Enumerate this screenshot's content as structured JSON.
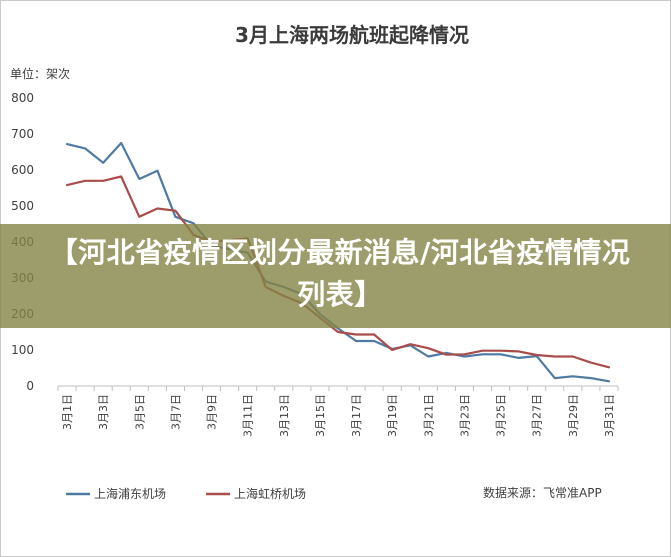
{
  "chart_data": {
    "type": "line",
    "title": "3月上海两场航班起降情况",
    "unit_label": "单位：架次",
    "ylim": [
      0,
      800
    ],
    "yticks": [
      0,
      100,
      200,
      300,
      400,
      500,
      600,
      700,
      800
    ],
    "categories": [
      "3月1日",
      "3月2日",
      "3月3日",
      "3月4日",
      "3月5日",
      "3月6日",
      "3月7日",
      "3月8日",
      "3月9日",
      "3月10日",
      "3月11日",
      "3月12日",
      "3月13日",
      "3月14日",
      "3月15日",
      "3月16日",
      "3月17日",
      "3月18日",
      "3月19日",
      "3月20日",
      "3月21日",
      "3月22日",
      "3月23日",
      "3月24日",
      "3月25日",
      "3月26日",
      "3月27日",
      "3月28日",
      "3月29日",
      "3月30日",
      "3月31日"
    ],
    "tick_labels": [
      "3月1日",
      "3月3日",
      "3月5日",
      "3月7日",
      "3月9日",
      "3月11日",
      "3月13日",
      "3月15日",
      "3月17日",
      "3月19日",
      "3月21日",
      "3月23日",
      "3月25日",
      "3月27日",
      "3月29日",
      "3月31日"
    ],
    "grid": false,
    "legend_position": "bottom-left",
    "series": [
      {
        "name": "上海浦东机场",
        "color": "#4f7aa1",
        "values": [
          672,
          660,
          620,
          675,
          575,
          598,
          470,
          452,
          390,
          380,
          370,
          290,
          275,
          255,
          200,
          160,
          125,
          125,
          103,
          113,
          82,
          92,
          82,
          88,
          88,
          78,
          83,
          22,
          27,
          22,
          13
        ]
      },
      {
        "name": "上海虹桥机场",
        "color": "#a84d4a",
        "values": [
          558,
          570,
          570,
          582,
          470,
          493,
          487,
          420,
          400,
          405,
          410,
          275,
          250,
          230,
          190,
          150,
          143,
          143,
          100,
          116,
          105,
          87,
          88,
          98,
          98,
          96,
          86,
          82,
          82,
          65,
          52
        ]
      }
    ]
  },
  "source_label": "数据来源：飞常准APP",
  "banner": {
    "text": "【河北省疫情区划分最新消息/河北省疫情情况列表】",
    "color": "#848446"
  }
}
